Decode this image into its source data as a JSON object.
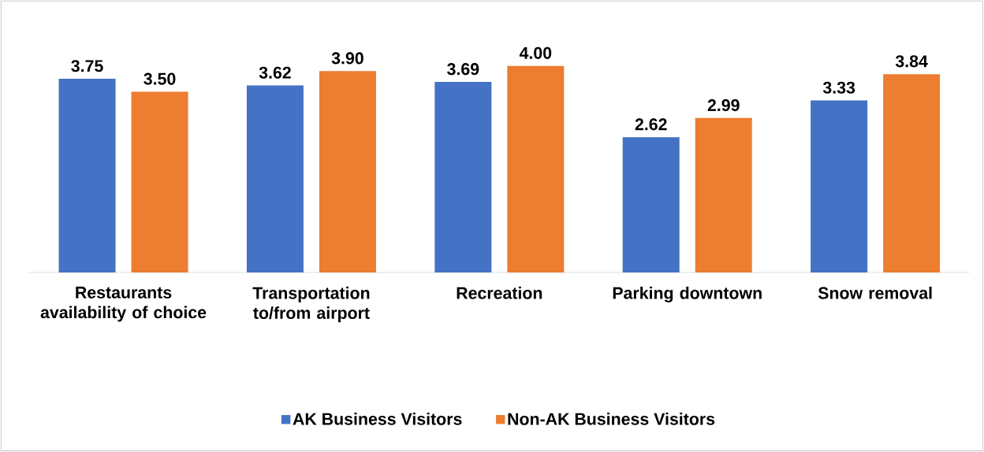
{
  "chart_data": {
    "type": "bar",
    "categories": [
      "Restaurants availability of choice",
      "Transportation to/from airport",
      "Recreation",
      "Parking downtown",
      "Snow removal"
    ],
    "series": [
      {
        "name": "AK Business Visitors",
        "color": "#4472c4",
        "values": [
          3.75,
          3.62,
          3.69,
          2.62,
          3.33
        ],
        "value_labels": [
          "3.75",
          "3.62",
          "3.69",
          "2.62",
          "3.33"
        ]
      },
      {
        "name": "Non-AK Business Visitors",
        "color": "#ed7d31",
        "values": [
          3.5,
          3.9,
          4.0,
          2.99,
          3.84
        ],
        "value_labels": [
          "3.50",
          "3.90",
          "4.00",
          "2.99",
          "3.84"
        ]
      }
    ],
    "legend": "bottom"
  }
}
